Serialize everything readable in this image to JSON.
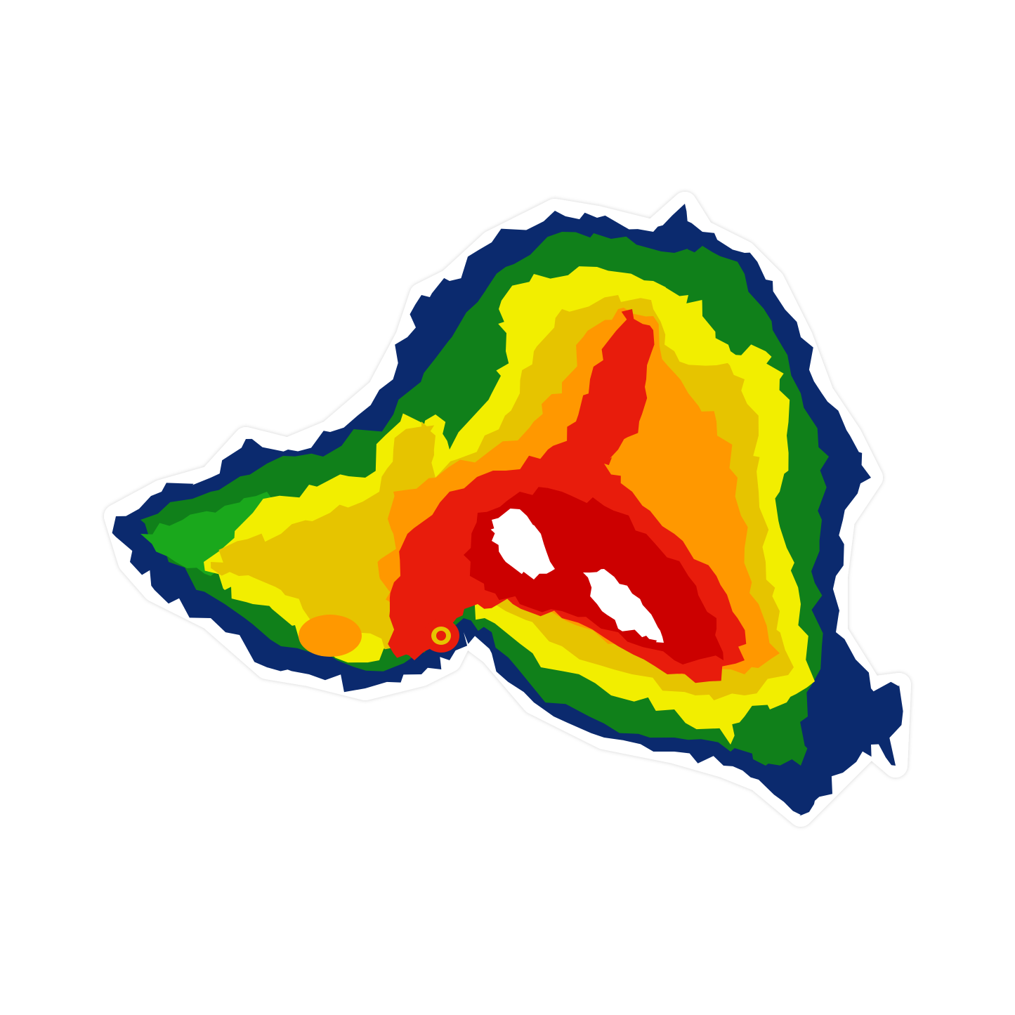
{
  "image": {
    "subject": "radar-reflectivity-sticker",
    "palette": {
      "background": "#ffffff",
      "sticker_border": "#ffffff",
      "level_1": "#0b2a6e",
      "level_2": "#10801a",
      "level_3": "#1aa81c",
      "level_4": "#f2ee00",
      "level_5": "#e6c400",
      "level_6": "#ff9800",
      "level_7": "#e81c0c",
      "level_8": "#cc0000",
      "level_9": "#ffffff"
    }
  }
}
